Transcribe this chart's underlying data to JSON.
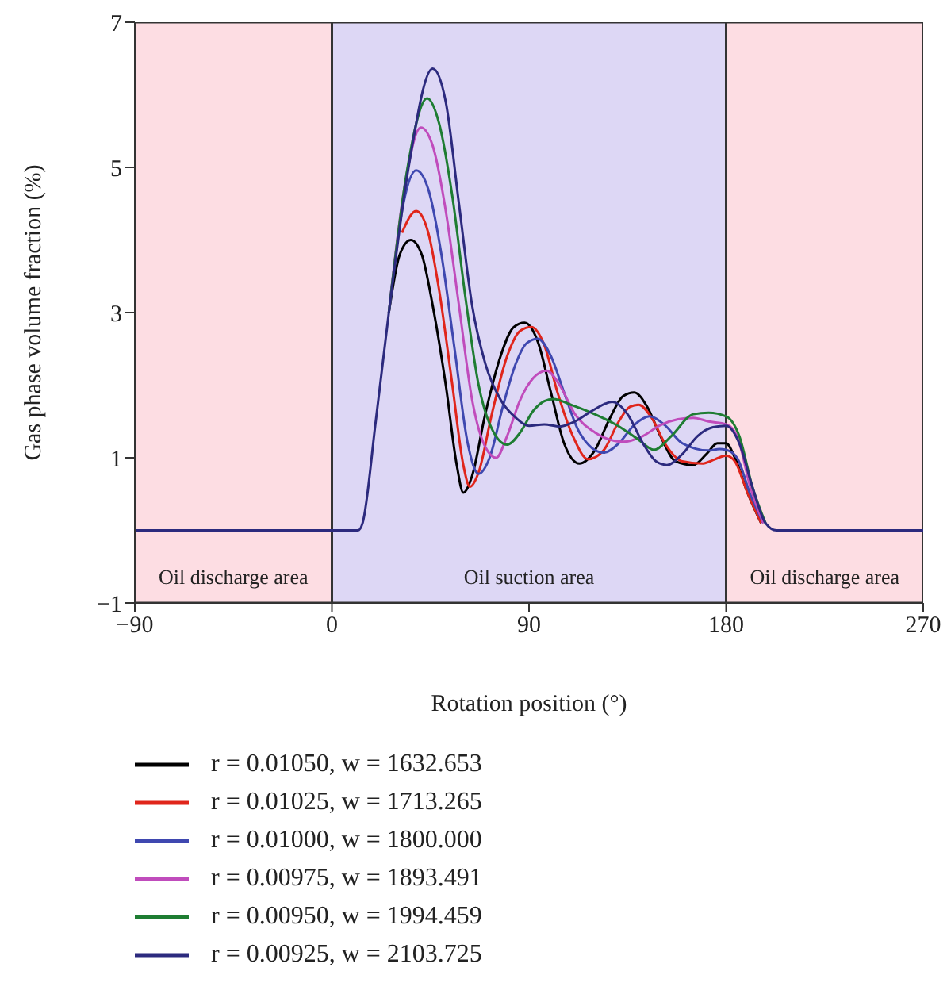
{
  "chart_data": {
    "type": "line",
    "xlabel": "Rotation position (°)",
    "ylabel": "Gas phase volume fraction (%)",
    "xlim": [
      -90,
      270
    ],
    "xticks": [
      -90,
      0,
      90,
      180,
      270
    ],
    "ylim": [
      -1,
      7
    ],
    "yticks": [
      -1,
      1,
      3,
      5,
      7
    ],
    "legend": "bottom",
    "marker": "none",
    "line_style": "solid",
    "bands": [
      {
        "axis": "x",
        "from": -90,
        "to": 0,
        "label": "Oil discharge area",
        "color": "#fddde3"
      },
      {
        "axis": "x",
        "from": 0,
        "to": 180,
        "label": "Oil suction area",
        "color": "#ddd7f5"
      },
      {
        "axis": "x",
        "from": 180,
        "to": 270,
        "label": "Oil discharge area",
        "color": "#fddde3"
      }
    ],
    "series": [
      {
        "name": "r = 0.01050, w = 1632.653",
        "color": "#000000",
        "x": [
          26,
          31,
          36,
          41,
          46,
          52,
          57,
          60,
          64,
          70,
          77,
          83,
          88,
          94,
          100,
          106,
          113,
          120,
          127,
          133,
          138,
          144,
          150,
          157,
          165,
          171,
          176,
          180,
          184,
          190,
          196
        ],
        "values": [
          3.0,
          3.8,
          4.0,
          3.8,
          3.1,
          2.0,
          0.9,
          0.52,
          0.75,
          1.6,
          2.4,
          2.8,
          2.86,
          2.6,
          1.9,
          1.2,
          0.92,
          1.1,
          1.55,
          1.85,
          1.9,
          1.7,
          1.3,
          0.95,
          0.9,
          1.05,
          1.2,
          1.2,
          1.0,
          0.5,
          0.1
        ]
      },
      {
        "name": "r = 0.01025, w = 1713.265",
        "color": "#e0251b",
        "x": [
          32,
          38.5,
          44,
          49,
          55,
          60,
          63,
          67,
          73,
          80,
          86,
          91,
          97,
          103,
          110,
          117,
          124,
          131,
          136,
          140,
          146,
          152,
          160,
          169,
          175,
          180,
          184,
          190,
          196
        ],
        "values": [
          4.1,
          4.4,
          4.1,
          3.3,
          2.0,
          0.9,
          0.6,
          0.8,
          1.6,
          2.4,
          2.75,
          2.8,
          2.55,
          1.9,
          1.3,
          0.98,
          1.1,
          1.5,
          1.7,
          1.73,
          1.55,
          1.2,
          0.95,
          0.92,
          0.98,
          1.03,
          0.95,
          0.5,
          0.1
        ]
      },
      {
        "name": "r = 0.01000, w = 1800.000",
        "color": "#3f48b0",
        "x": [
          26,
          32,
          38.5,
          44,
          50,
          56,
          62,
          67,
          72,
          78,
          84,
          89,
          94,
          100,
          106,
          113,
          124,
          131,
          138,
          145,
          152,
          160,
          172,
          177,
          180,
          185,
          191,
          197
        ],
        "values": [
          3.0,
          4.4,
          4.96,
          4.7,
          3.8,
          2.5,
          1.2,
          0.78,
          1.0,
          1.7,
          2.3,
          2.58,
          2.64,
          2.4,
          1.9,
          1.35,
          1.07,
          1.2,
          1.45,
          1.57,
          1.45,
          1.2,
          1.1,
          1.12,
          1.11,
          1.0,
          0.5,
          0.1
        ]
      },
      {
        "name": "r = 0.00975, w = 1893.491",
        "color": "#c04cbc",
        "x": [
          26,
          33,
          40.6,
          46,
          52,
          58,
          64,
          70,
          75,
          80,
          86,
          92,
          98,
          104,
          111,
          120,
          133,
          142,
          150,
          158,
          165,
          172,
          180,
          185,
          191,
          197
        ],
        "values": [
          3.0,
          4.7,
          5.55,
          5.3,
          4.4,
          3.1,
          1.8,
          1.15,
          1.0,
          1.3,
          1.8,
          2.1,
          2.2,
          2.0,
          1.6,
          1.35,
          1.22,
          1.3,
          1.45,
          1.53,
          1.55,
          1.5,
          1.46,
          1.3,
          0.6,
          0.1
        ]
      },
      {
        "name": "r = 0.00950, w = 1994.459",
        "color": "#1e7d32",
        "x": [
          26,
          34,
          43.5,
          49,
          55,
          61,
          67,
          73,
          80,
          86,
          92,
          97,
          101,
          110,
          120,
          130,
          140,
          147,
          155,
          165,
          172,
          180,
          186,
          192,
          198
        ],
        "values": [
          3.0,
          4.9,
          5.95,
          5.6,
          4.6,
          3.2,
          2.0,
          1.4,
          1.18,
          1.35,
          1.65,
          1.78,
          1.81,
          1.72,
          1.6,
          1.45,
          1.25,
          1.11,
          1.3,
          1.6,
          1.62,
          1.57,
          1.3,
          0.6,
          0.1
        ]
      },
      {
        "name": "r = 0.00925, w = 2103.725",
        "color": "#2c2a7e",
        "x": [
          -90,
          0,
          12,
          14,
          20,
          26,
          35,
          46,
          52,
          58,
          64,
          70,
          77,
          84,
          90,
          97,
          104,
          111,
          119,
          128,
          135,
          142,
          148,
          153,
          160,
          167,
          174,
          180,
          186,
          192,
          198,
          203,
          210,
          270
        ],
        "values": [
          0,
          0,
          0,
          0.1,
          1.5,
          3.0,
          5.0,
          6.36,
          5.9,
          4.5,
          3.1,
          2.3,
          1.8,
          1.55,
          1.44,
          1.46,
          1.43,
          1.5,
          1.65,
          1.77,
          1.6,
          1.2,
          0.95,
          0.9,
          1.05,
          1.3,
          1.42,
          1.44,
          1.2,
          0.6,
          0.1,
          0,
          0,
          0
        ]
      }
    ]
  }
}
